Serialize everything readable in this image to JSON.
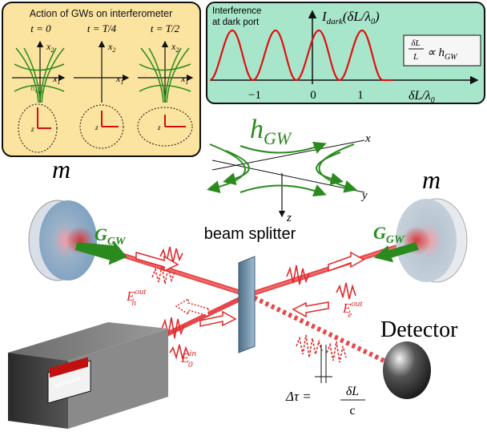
{
  "left_panel": {
    "title": "Action of GWs on interferometer",
    "times": [
      "t = 0",
      "t = T/4",
      "t = T/2"
    ],
    "axis_x": "x",
    "axis_x_sub": "1",
    "axis_y": "x",
    "axis_y_sub": "2",
    "h_label": "h",
    "h_sub": "GW",
    "z_label": "z"
  },
  "right_panel": {
    "title_line1": "Interference",
    "title_line2": "at dark port",
    "y_label": "I",
    "y_sub": "dark",
    "y_arg": "(δL/λ",
    "y_arg_sub": "0",
    "y_arg_end": ")",
    "x_label": "δL/λ",
    "x_label_sub": "0",
    "ticks": [
      "−1",
      "0",
      "1"
    ],
    "relation_num": "δL",
    "relation_den": "L",
    "relation_mid": "∝ h",
    "relation_sub": "GW",
    "peak_color": "#e01010"
  },
  "diagram": {
    "h_gw": "h",
    "h_gw_sub": "GW",
    "axis_x": "x",
    "axis_y": "y",
    "axis_z": "z",
    "mass_left": "m",
    "mass_right": "m",
    "g_left": "G",
    "g_left_sub": "GW",
    "g_right": "G",
    "g_right_sub": "GW",
    "beam_splitter": "beam splitter",
    "e_out_n": "E",
    "e_out_n_sup": "out",
    "e_out_n_sub": "n",
    "e_in": "E",
    "e_in_sup": "in",
    "e_in_sub": "0",
    "e_out_e": "E",
    "e_out_e_sup": "out",
    "e_out_e_sub": "e",
    "detector": "Detector",
    "delta_tau": "Δτ =",
    "delta_num": "δL",
    "delta_den": "c",
    "danger_label": "DANGER",
    "green": "#2a8a1e",
    "beam_red": "#e0282a"
  }
}
